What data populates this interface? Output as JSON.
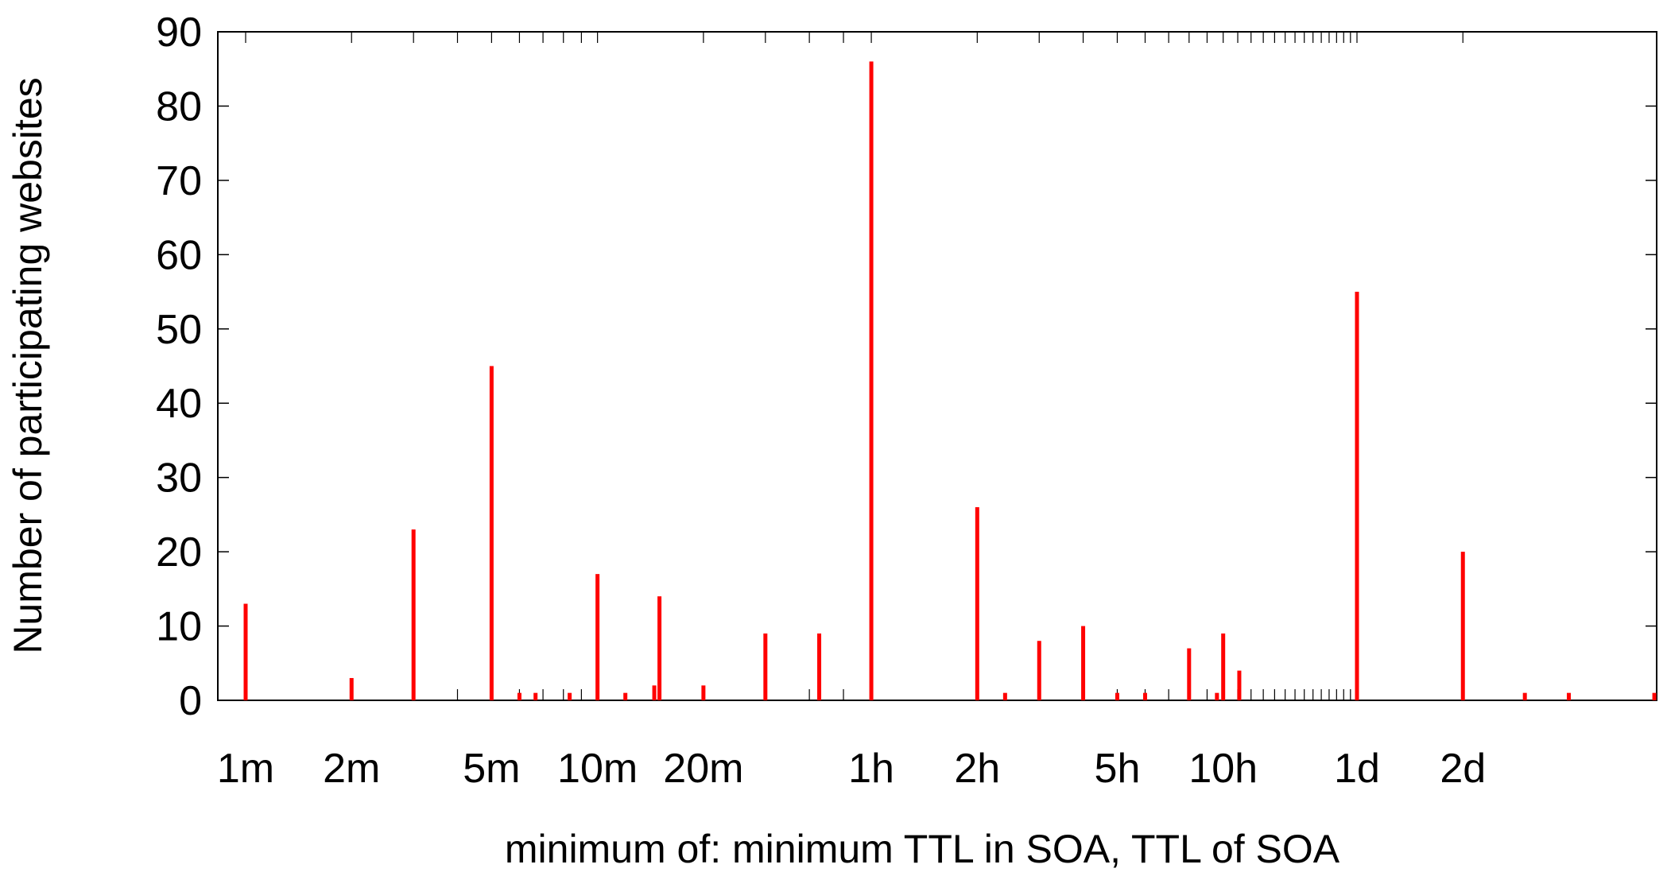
{
  "chart_data": {
    "type": "bar",
    "title": "",
    "xlabel": "minimum of: minimum TTL in SOA, TTL of SOA",
    "ylabel": "Number of participating websites",
    "x_scale": "log",
    "x_unit": "seconds",
    "ylim": [
      0,
      90
    ],
    "xlim_seconds": [
      45,
      360000
    ],
    "grid": false,
    "bar_color": "#ff0000",
    "y_ticks": [
      0,
      10,
      20,
      30,
      40,
      50,
      60,
      70,
      80,
      90
    ],
    "x_ticks": [
      {
        "label": "1m",
        "seconds": 60
      },
      {
        "label": "2m",
        "seconds": 120
      },
      {
        "label": "5m",
        "seconds": 300
      },
      {
        "label": "10m",
        "seconds": 600
      },
      {
        "label": "20m",
        "seconds": 1200
      },
      {
        "label": "1h",
        "seconds": 3600
      },
      {
        "label": "2h",
        "seconds": 7200
      },
      {
        "label": "5h",
        "seconds": 18000
      },
      {
        "label": "10h",
        "seconds": 36000
      },
      {
        "label": "1d",
        "seconds": 86400
      },
      {
        "label": "2d",
        "seconds": 172800
      }
    ],
    "minor_ticks_seconds": [
      60,
      120,
      180,
      240,
      300,
      360,
      420,
      480,
      540,
      600,
      1200,
      1800,
      2400,
      3000,
      3600,
      7200,
      10800,
      14400,
      18000,
      21600,
      25200,
      28800,
      32400,
      36000,
      39600,
      43200,
      46800,
      50400,
      54000,
      57600,
      61200,
      64800,
      68400,
      72000,
      75600,
      79200,
      82800,
      86400,
      172800
    ],
    "points": [
      {
        "seconds": 60,
        "value": 13
      },
      {
        "seconds": 120,
        "value": 3
      },
      {
        "seconds": 180,
        "value": 23
      },
      {
        "seconds": 300,
        "value": 45
      },
      {
        "seconds": 360,
        "value": 1
      },
      {
        "seconds": 400,
        "value": 1
      },
      {
        "seconds": 500,
        "value": 1
      },
      {
        "seconds": 600,
        "value": 17
      },
      {
        "seconds": 720,
        "value": 1
      },
      {
        "seconds": 870,
        "value": 2
      },
      {
        "seconds": 900,
        "value": 14
      },
      {
        "seconds": 1200,
        "value": 2
      },
      {
        "seconds": 1800,
        "value": 9
      },
      {
        "seconds": 2560,
        "value": 9
      },
      {
        "seconds": 3600,
        "value": 86
      },
      {
        "seconds": 7200,
        "value": 26
      },
      {
        "seconds": 8640,
        "value": 1
      },
      {
        "seconds": 10800,
        "value": 8
      },
      {
        "seconds": 14400,
        "value": 10
      },
      {
        "seconds": 18000,
        "value": 1
      },
      {
        "seconds": 21600,
        "value": 1
      },
      {
        "seconds": 28800,
        "value": 7
      },
      {
        "seconds": 34560,
        "value": 1
      },
      {
        "seconds": 36000,
        "value": 9
      },
      {
        "seconds": 40000,
        "value": 4
      },
      {
        "seconds": 86400,
        "value": 55
      },
      {
        "seconds": 172800,
        "value": 20
      },
      {
        "seconds": 259200,
        "value": 1
      },
      {
        "seconds": 345600,
        "value": 1
      },
      {
        "seconds": 604800,
        "value": 1
      }
    ]
  }
}
